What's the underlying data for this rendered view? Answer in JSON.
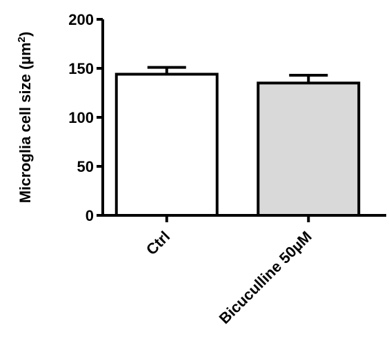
{
  "chart_data": {
    "type": "bar",
    "ylabel": "Microglia cell size (µm",
    "ylabel_sup": "2",
    "ylabel_close": ")",
    "ylim": [
      0,
      200
    ],
    "yticks": [
      0,
      50,
      100,
      150,
      200
    ],
    "categories": [
      "Ctrl",
      "Bicuculline 50µM"
    ],
    "values": [
      144,
      135
    ],
    "errors": [
      7,
      8
    ],
    "bar_colors": [
      "#ffffff",
      "#d9d9d9"
    ],
    "grid": false
  }
}
